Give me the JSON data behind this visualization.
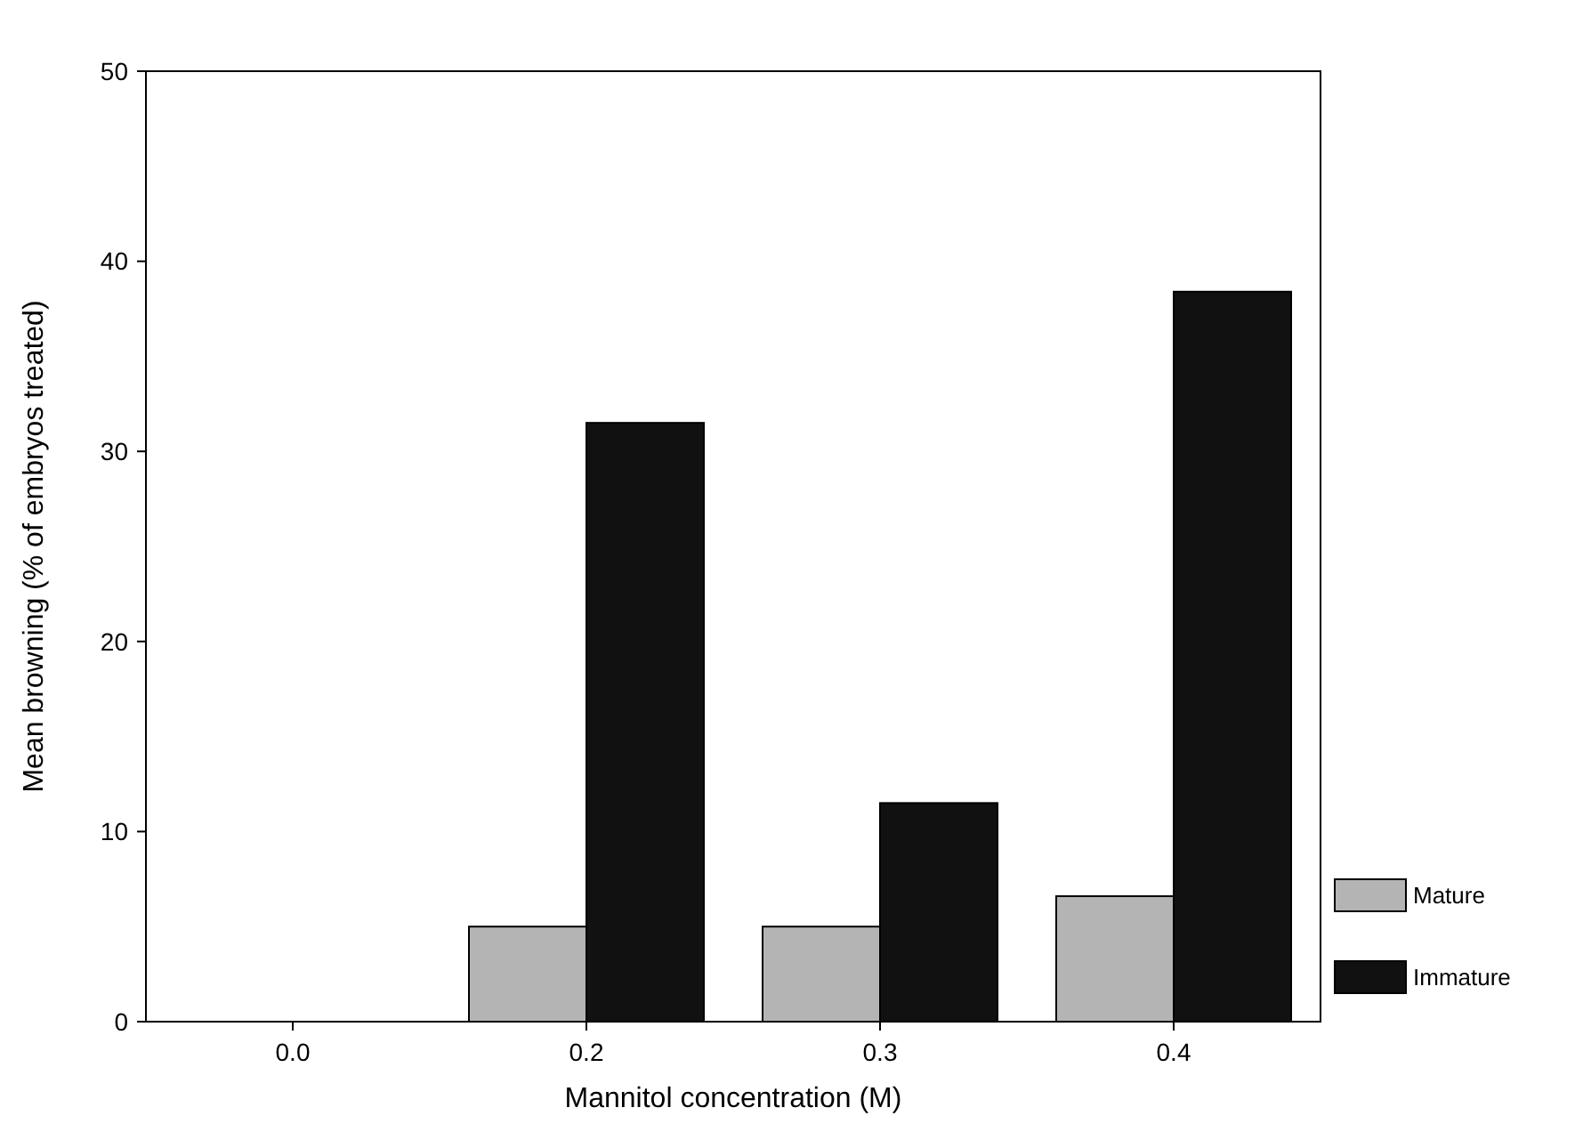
{
  "chart_data": {
    "type": "bar",
    "xlabel": "Mannitol concentration (M)",
    "ylabel": "Mean browning (% of embryos treated)",
    "categories": [
      "0.0",
      "0.2",
      "0.3",
      "0.4"
    ],
    "series": [
      {
        "name": "Mature",
        "color": "#b4b4b4",
        "values": [
          0,
          5,
          5,
          6.6
        ]
      },
      {
        "name": "Immature",
        "color": "#111111",
        "values": [
          0,
          31.5,
          11.5,
          38.4
        ]
      }
    ],
    "ylim": [
      0,
      50
    ],
    "yticks": [
      0,
      10,
      20,
      30,
      40,
      50
    ],
    "grid": false,
    "legend": "bottom right"
  }
}
